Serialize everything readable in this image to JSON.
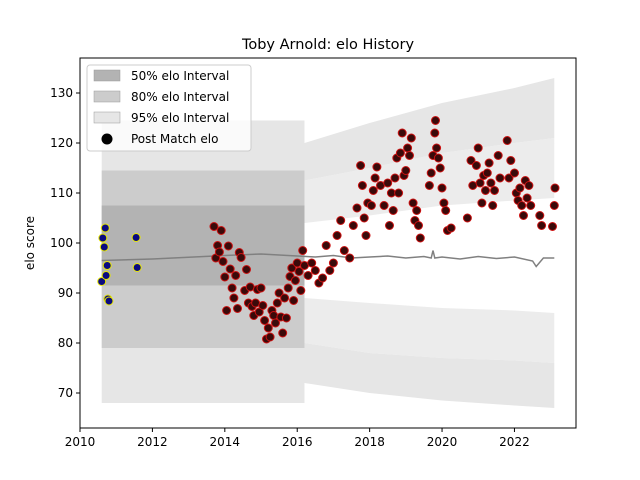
{
  "chart_data": {
    "type": "scatter",
    "title": "Toby Arnold: elo History",
    "xlabel": "",
    "ylabel": "elo score",
    "xlim": [
      2010.0,
      2023.7
    ],
    "ylim": [
      63.0,
      137.0
    ],
    "x_ticks": [
      2010,
      2012,
      2014,
      2016,
      2018,
      2020,
      2022
    ],
    "y_ticks": [
      70,
      80,
      90,
      100,
      110,
      120,
      130
    ],
    "grid": false,
    "legend": {
      "placement": "top-left",
      "entries": [
        {
          "label": "50% elo Interval",
          "color": "#b3b3b3"
        },
        {
          "label": "80% elo Interval",
          "color": "#cccccc"
        },
        {
          "label": "95% elo Interval",
          "color": "#e6e6e6"
        },
        {
          "label": "Post Match elo",
          "color": "#000000"
        }
      ]
    },
    "colors": {
      "band50": "#b3b3b3",
      "band80": "#cccccc",
      "band95": "#e6e6e6",
      "mean_line": "#808080",
      "point_fill": "#3a0a0a",
      "point_edge": "#cc1111",
      "early_fill": "#0a0a80",
      "early_edge": "#e8e800"
    },
    "early_band": {
      "x": [
        2010.6,
        2016.2
      ],
      "p50": [
        91.5,
        107.5
      ],
      "p80": [
        79.0,
        114.5
      ],
      "p95": [
        68.0,
        124.5
      ]
    },
    "late_band": {
      "x": [
        2016.2,
        2018.0,
        2020.0,
        2022.0,
        2023.1
      ],
      "upper95": [
        120.0,
        124.0,
        128.0,
        131.0,
        133.0
      ],
      "upper80": [
        112.5,
        115.0,
        118.0,
        120.0,
        121.0
      ],
      "upper50": [
        104.0,
        105.5,
        107.5,
        108.5,
        109.0
      ],
      "lower50": [
        89.0,
        88.0,
        87.0,
        86.5,
        86.0
      ],
      "lower80": [
        80.0,
        78.0,
        77.0,
        76.5,
        76.0
      ],
      "lower95": [
        72.0,
        70.0,
        68.5,
        67.5,
        67.0
      ]
    },
    "mean_line": {
      "x": [
        2010.6,
        2012.0,
        2014.0,
        2015.0,
        2016.0,
        2016.5,
        2017.0,
        2017.5,
        2018.0,
        2018.5,
        2019.0,
        2019.5,
        2019.7,
        2019.75,
        2019.8,
        2020.0,
        2020.5,
        2021.0,
        2021.5,
        2022.0,
        2022.5,
        2022.6,
        2022.8,
        2023.1
      ],
      "y": [
        96.5,
        96.8,
        97.5,
        97.8,
        97.4,
        97.2,
        97.5,
        97.0,
        97.2,
        97.4,
        97.0,
        97.3,
        97.0,
        98.5,
        97.0,
        97.2,
        96.8,
        97.3,
        96.9,
        97.2,
        96.4,
        95.3,
        97.0,
        97.0
      ]
    },
    "series": [
      {
        "name": "Post Match elo",
        "group": "early",
        "points": [
          [
            2010.6,
            92.3
          ],
          [
            2010.63,
            101.0
          ],
          [
            2010.67,
            99.2
          ],
          [
            2010.7,
            103.0
          ],
          [
            2010.72,
            93.5
          ],
          [
            2010.75,
            95.5
          ],
          [
            2010.77,
            88.8
          ],
          [
            2010.8,
            88.4
          ],
          [
            2011.55,
            101.1
          ],
          [
            2011.58,
            95.1
          ]
        ]
      },
      {
        "name": "Post Match elo",
        "group": "main",
        "points": [
          [
            2013.7,
            103.3
          ],
          [
            2013.75,
            97.0
          ],
          [
            2013.8,
            99.5
          ],
          [
            2013.85,
            98.2
          ],
          [
            2013.9,
            102.5
          ],
          [
            2013.95,
            96.3
          ],
          [
            2014.0,
            93.2
          ],
          [
            2014.05,
            86.5
          ],
          [
            2014.1,
            99.4
          ],
          [
            2014.15,
            94.8
          ],
          [
            2014.2,
            91.0
          ],
          [
            2014.25,
            89.0
          ],
          [
            2014.3,
            93.5
          ],
          [
            2014.35,
            86.9
          ],
          [
            2014.4,
            98.1
          ],
          [
            2014.45,
            97.1
          ],
          [
            2014.55,
            90.5
          ],
          [
            2014.6,
            94.7
          ],
          [
            2014.65,
            88.0
          ],
          [
            2014.7,
            91.2
          ],
          [
            2014.75,
            87.3
          ],
          [
            2014.8,
            85.5
          ],
          [
            2014.85,
            88.0
          ],
          [
            2014.9,
            90.7
          ],
          [
            2014.95,
            86.2
          ],
          [
            2015.0,
            91.0
          ],
          [
            2015.05,
            87.5
          ],
          [
            2015.1,
            84.5
          ],
          [
            2015.15,
            80.8
          ],
          [
            2015.2,
            83.0
          ],
          [
            2015.25,
            81.2
          ],
          [
            2015.3,
            86.5
          ],
          [
            2015.35,
            85.5
          ],
          [
            2015.4,
            84.0
          ],
          [
            2015.45,
            88.0
          ],
          [
            2015.5,
            90.0
          ],
          [
            2015.55,
            85.2
          ],
          [
            2015.6,
            82.0
          ],
          [
            2015.65,
            89.0
          ],
          [
            2015.7,
            85.0
          ],
          [
            2015.75,
            91.0
          ],
          [
            2015.8,
            93.3
          ],
          [
            2015.85,
            95.0
          ],
          [
            2015.9,
            88.5
          ],
          [
            2015.95,
            92.5
          ],
          [
            2016.0,
            96.0
          ],
          [
            2016.05,
            94.3
          ],
          [
            2016.1,
            90.5
          ],
          [
            2016.15,
            98.5
          ],
          [
            2016.2,
            95.5
          ],
          [
            2016.3,
            93.5
          ],
          [
            2016.4,
            96.0
          ],
          [
            2016.5,
            94.5
          ],
          [
            2016.6,
            92.0
          ],
          [
            2016.7,
            93.0
          ],
          [
            2016.8,
            99.5
          ],
          [
            2016.9,
            94.5
          ],
          [
            2017.0,
            96.0
          ],
          [
            2017.1,
            101.5
          ],
          [
            2017.2,
            104.5
          ],
          [
            2017.3,
            98.5
          ],
          [
            2017.45,
            97.0
          ],
          [
            2017.55,
            103.5
          ],
          [
            2017.65,
            107.0
          ],
          [
            2017.75,
            115.5
          ],
          [
            2017.8,
            111.5
          ],
          [
            2017.85,
            105.0
          ],
          [
            2017.9,
            101.5
          ],
          [
            2017.95,
            108.0
          ],
          [
            2018.05,
            107.5
          ],
          [
            2018.1,
            110.5
          ],
          [
            2018.15,
            113.0
          ],
          [
            2018.2,
            115.2
          ],
          [
            2018.3,
            111.5
          ],
          [
            2018.4,
            107.5
          ],
          [
            2018.5,
            112.0
          ],
          [
            2018.55,
            103.5
          ],
          [
            2018.6,
            110.0
          ],
          [
            2018.65,
            106.5
          ],
          [
            2018.7,
            113.0
          ],
          [
            2018.75,
            117.0
          ],
          [
            2018.8,
            110.0
          ],
          [
            2018.85,
            118.0
          ],
          [
            2018.9,
            122.0
          ],
          [
            2018.95,
            113.5
          ],
          [
            2019.0,
            114.5
          ],
          [
            2019.05,
            119.0
          ],
          [
            2019.1,
            117.5
          ],
          [
            2019.15,
            121.0
          ],
          [
            2019.2,
            108.0
          ],
          [
            2019.25,
            104.5
          ],
          [
            2019.3,
            106.5
          ],
          [
            2019.35,
            103.5
          ],
          [
            2019.4,
            101.0
          ],
          [
            2019.65,
            111.5
          ],
          [
            2019.7,
            114.0
          ],
          [
            2019.75,
            117.5
          ],
          [
            2019.8,
            122.0
          ],
          [
            2019.82,
            124.5
          ],
          [
            2019.85,
            119.0
          ],
          [
            2019.9,
            117.0
          ],
          [
            2019.95,
            115.0
          ],
          [
            2020.0,
            111.0
          ],
          [
            2020.05,
            108.0
          ],
          [
            2020.1,
            106.5
          ],
          [
            2020.15,
            102.5
          ],
          [
            2020.25,
            103.0
          ],
          [
            2020.7,
            105.0
          ],
          [
            2020.8,
            116.5
          ],
          [
            2020.85,
            111.5
          ],
          [
            2020.95,
            115.5
          ],
          [
            2021.0,
            119.0
          ],
          [
            2021.05,
            112.0
          ],
          [
            2021.1,
            108.0
          ],
          [
            2021.15,
            113.5
          ],
          [
            2021.2,
            110.5
          ],
          [
            2021.25,
            114.0
          ],
          [
            2021.3,
            116.0
          ],
          [
            2021.35,
            112.0
          ],
          [
            2021.4,
            107.5
          ],
          [
            2021.45,
            110.5
          ],
          [
            2021.55,
            117.5
          ],
          [
            2021.6,
            113.0
          ],
          [
            2021.8,
            120.5
          ],
          [
            2021.85,
            113.0
          ],
          [
            2021.9,
            116.5
          ],
          [
            2022.0,
            114.0
          ],
          [
            2022.05,
            110.0
          ],
          [
            2022.1,
            108.5
          ],
          [
            2022.15,
            111.0
          ],
          [
            2022.2,
            107.5
          ],
          [
            2022.25,
            105.5
          ],
          [
            2022.3,
            112.5
          ],
          [
            2022.35,
            109.0
          ],
          [
            2022.4,
            111.5
          ],
          [
            2022.45,
            107.5
          ],
          [
            2022.7,
            105.5
          ],
          [
            2022.75,
            103.5
          ],
          [
            2023.05,
            103.3
          ],
          [
            2023.1,
            107.5
          ],
          [
            2023.12,
            111.0
          ]
        ]
      }
    ]
  }
}
